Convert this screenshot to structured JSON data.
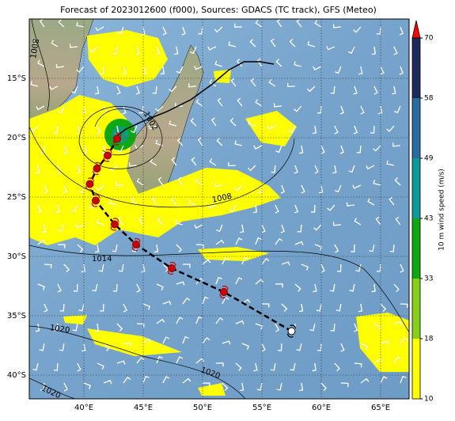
{
  "chart_data": {
    "type": "map",
    "title": "Forecast of 2023012600 (f000), Sources: GDACS (TC track), GFS (Meteo)",
    "xlim": [
      35.4,
      67.4
    ],
    "ylim": [
      -42,
      -10
    ],
    "xticks": [
      {
        "value": 40,
        "label": "40°E"
      },
      {
        "value": 45,
        "label": "45°E"
      },
      {
        "value": 50,
        "label": "50°E"
      },
      {
        "value": 55,
        "label": "55°E"
      },
      {
        "value": 60,
        "label": "60°E"
      },
      {
        "value": 65,
        "label": "65°E"
      }
    ],
    "yticks": [
      {
        "value": -15,
        "label": "15°S"
      },
      {
        "value": -20,
        "label": "20°S"
      },
      {
        "value": -25,
        "label": "25°S"
      },
      {
        "value": -30,
        "label": "30°S"
      },
      {
        "value": -35,
        "label": "35°S"
      },
      {
        "value": -40,
        "label": "40°S"
      }
    ],
    "grid": true,
    "colorbar": {
      "label": "10 m wind speed (m/s)",
      "ticks": [
        10,
        18,
        33,
        43,
        49,
        58,
        70
      ],
      "colors": [
        "#ffff00",
        "#86cf1a",
        "#10a614",
        "#0e9a9a",
        "#2a6c9c",
        "#1d2a5c"
      ],
      "extend_color": "#ff0000"
    },
    "observed_track": {
      "color": "#000000",
      "lon": [
        42.6,
        43.5,
        45.0,
        47.0,
        49.0,
        50.8,
        52.2,
        53.5,
        54.8,
        56.0
      ],
      "lat": [
        -20.0,
        -19.3,
        -18.6,
        -17.8,
        -16.8,
        -15.5,
        -14.3,
        -13.6,
        -13.6,
        -13.8
      ]
    },
    "forecast_track": {
      "color": "#cc0000",
      "lon": [
        57.5,
        51.8,
        47.4,
        44.4,
        42.6,
        41.0,
        40.5,
        41.1,
        42.0,
        42.8
      ],
      "lat": [
        -36.3,
        -33.0,
        -31.0,
        -29.0,
        -27.3,
        -25.3,
        -23.9,
        -22.6,
        -21.5,
        -20.1
      ]
    },
    "contour_labels": [
      "1008",
      "1002",
      "1008",
      "1014",
      "1020",
      "1020",
      "1020"
    ]
  }
}
